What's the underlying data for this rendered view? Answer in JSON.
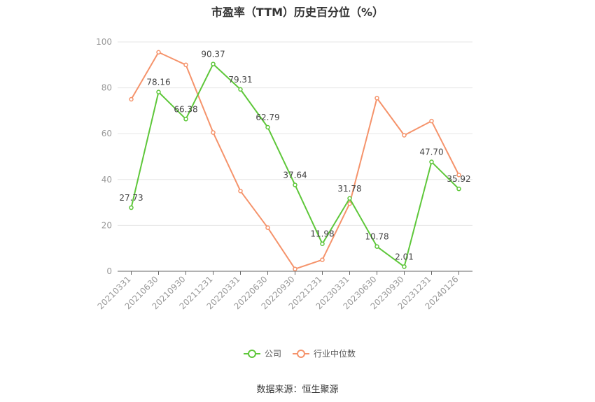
{
  "chart_data": {
    "type": "line",
    "title": "市盈率（TTM）历史百分位（%）",
    "categories": [
      "20210331",
      "20210630",
      "20210930",
      "20211231",
      "20220331",
      "20220630",
      "20220930",
      "20221231",
      "20230331",
      "20230630",
      "20230930",
      "20231231",
      "20240126"
    ],
    "ylim": [
      0,
      100
    ],
    "yticks": [
      0,
      20,
      40,
      60,
      80,
      100
    ],
    "grid": true,
    "legend_position": "bottom",
    "series": [
      {
        "name": "公司",
        "color": "#5ec73a",
        "show_labels": true,
        "values": [
          27.73,
          78.16,
          66.38,
          90.37,
          79.31,
          62.79,
          37.64,
          11.98,
          31.78,
          10.78,
          2.01,
          47.7,
          35.92
        ],
        "labels": [
          "27.73",
          "78.16",
          "66.38",
          "90.37",
          "79.31",
          "62.79",
          "37.64",
          "11.98",
          "31.78",
          "10.78",
          "2.01",
          "47.70",
          "35.92"
        ]
      },
      {
        "name": "行业中位数",
        "color": "#f5936b",
        "show_labels": false,
        "values": [
          75,
          95.5,
          90,
          60.5,
          35,
          19,
          1,
          5,
          29.5,
          75.5,
          59.3,
          65.5,
          42
        ]
      }
    ]
  },
  "source": "数据来源：恒生聚源"
}
